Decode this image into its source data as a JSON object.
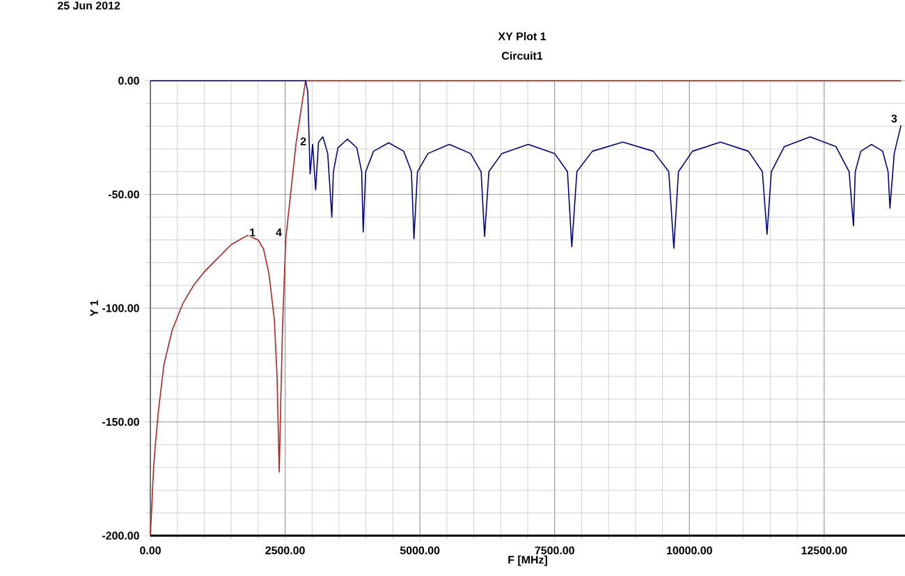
{
  "chart_data": {
    "type": "line",
    "title": "XY Plot 1",
    "subtitle": "Circuit1",
    "xlabel": "F [MHz]",
    "ylabel": "Y 1",
    "annotations": [
      "25 Jun 2012",
      {
        "text": "1",
        "x": 2020,
        "y": -70
      },
      {
        "text": "2",
        "x": 2963,
        "y": -30
      },
      {
        "text": "3",
        "x": 13925,
        "y": -20
      },
      {
        "text": "4",
        "x": 2510,
        "y": -70
      }
    ],
    "xlim": [
      0,
      14000
    ],
    "ylim": [
      -200,
      0
    ],
    "xticks": [
      {
        "value": 0,
        "label": "0.00"
      },
      {
        "value": 2500,
        "label": "2500.00"
      },
      {
        "value": 5000,
        "label": "5000.00"
      },
      {
        "value": 7500,
        "label": "7500.00"
      },
      {
        "value": 10000,
        "label": "10000.00"
      },
      {
        "value": 12500,
        "label": "12500.00"
      }
    ],
    "yticks": [
      {
        "value": -200,
        "label": "-200.00"
      },
      {
        "value": -150,
        "label": "-150.00"
      },
      {
        "value": -100,
        "label": "-100.00"
      },
      {
        "value": -50,
        "label": "-50.00"
      },
      {
        "value": 0,
        "label": "0.00"
      }
    ],
    "grid": true,
    "marker": "none",
    "line_style": "solid",
    "series": [
      {
        "color": "#b22222",
        "x": [
          0,
          30,
          60,
          100,
          150,
          250,
          400,
          600,
          800,
          1000,
          1250,
          1500,
          1800,
          2000,
          2100,
          2200,
          2300,
          2350,
          2390,
          2420,
          2450,
          2510,
          2600,
          2700,
          2800,
          2880,
          13925
        ],
        "values": [
          -200,
          -185,
          -170,
          -158,
          -145,
          -125,
          -110,
          -98,
          -90,
          -84,
          -78,
          -72,
          -68,
          -70,
          -74,
          -85,
          -105,
          -130,
          -172,
          -140,
          -110,
          -70,
          -50,
          -28,
          -12,
          0,
          0
        ]
      },
      {
        "color": "#00008b",
        "x": [
          0,
          2880,
          2920,
          2963,
          3010,
          3066,
          3120,
          3200,
          3290,
          3366,
          3395,
          3480,
          3657,
          3830,
          3920,
          3948,
          3995,
          4140,
          4420,
          4700,
          4843,
          4890,
          4955,
          5150,
          5545,
          5940,
          6135,
          6200,
          6280,
          6520,
          7010,
          7500,
          7738,
          7818,
          7912,
          8200,
          8765,
          9330,
          9617,
          9711,
          9797,
          10057,
          10576,
          11095,
          11354,
          11440,
          11520,
          11760,
          12240,
          12720,
          12963,
          13043,
          13077,
          13180,
          13380,
          13585,
          13686,
          13720,
          13800,
          13925
        ],
        "values": [
          0,
          0,
          -5,
          -41,
          -28,
          -48,
          -27,
          -24.7,
          -32,
          -60,
          -40,
          -29.5,
          -25.7,
          -29.5,
          -40,
          -66.5,
          -40,
          -31,
          -27.3,
          -31,
          -40,
          -69.5,
          -40,
          -32,
          -28,
          -32,
          -40,
          -68.5,
          -40,
          -32,
          -28,
          -32,
          -40,
          -73,
          -40,
          -31,
          -27,
          -31,
          -40,
          -73.6,
          -40,
          -31,
          -27,
          -31,
          -40,
          -67.5,
          -40,
          -29,
          -24.7,
          -29,
          -40,
          -63.8,
          -40,
          -31,
          -28,
          -31,
          -40,
          -56,
          -32,
          -19.6
        ]
      }
    ]
  }
}
